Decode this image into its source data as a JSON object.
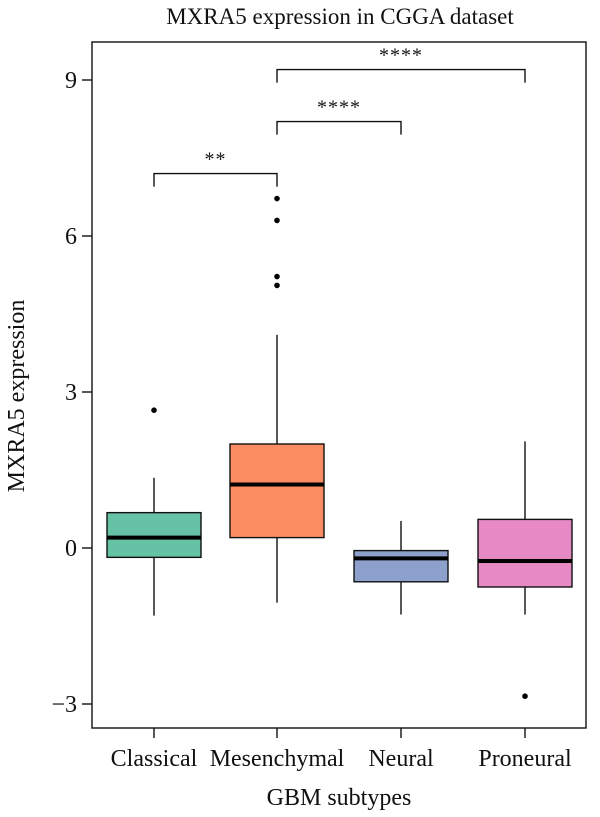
{
  "chart_data": {
    "type": "boxplot",
    "title": "MXRA5 expression in CGGA dataset",
    "xlabel": "GBM subtypes",
    "ylabel": "MXRA5 expression",
    "ylim": [
      -3.6,
      10.3
    ],
    "yticks": [
      -3,
      0,
      3,
      6,
      9
    ],
    "ytick_labels": [
      "−3",
      "0",
      "3",
      "6",
      "9"
    ],
    "grid": false,
    "legend": "none",
    "categories": [
      "Classical",
      "Mesenchymal",
      "Neural",
      "Proneural"
    ],
    "boxes": [
      {
        "category": "Classical",
        "color": "#66c2a5",
        "whisker_low": -1.3,
        "q1": -0.18,
        "median": 0.2,
        "q3": 0.68,
        "whisker_high": 1.35,
        "outliers": [
          2.65
        ]
      },
      {
        "category": "Mesenchymal",
        "color": "#fc8d62",
        "whisker_low": -1.05,
        "q1": 0.2,
        "median": 1.22,
        "q3": 2.0,
        "whisker_high": 4.1,
        "outliers": [
          5.05,
          5.22,
          6.3,
          6.72
        ]
      },
      {
        "category": "Neural",
        "color": "#8da0cb",
        "whisker_low": -1.28,
        "q1": -0.65,
        "median": -0.2,
        "q3": -0.05,
        "whisker_high": 0.52,
        "outliers": []
      },
      {
        "category": "Proneural",
        "color": "#e78ac3",
        "whisker_low": -1.28,
        "q1": -0.75,
        "median": -0.25,
        "q3": 0.55,
        "whisker_high": 2.05,
        "outliers": [
          -2.85
        ]
      }
    ],
    "significance": [
      {
        "from": "Classical",
        "to": "Mesenchymal",
        "y": 7.2,
        "label": "**"
      },
      {
        "from": "Mesenchymal",
        "to": "Neural",
        "y": 8.2,
        "label": "****"
      },
      {
        "from": "Mesenchymal",
        "to": "Proneural",
        "y": 9.2,
        "label": "****"
      }
    ]
  }
}
